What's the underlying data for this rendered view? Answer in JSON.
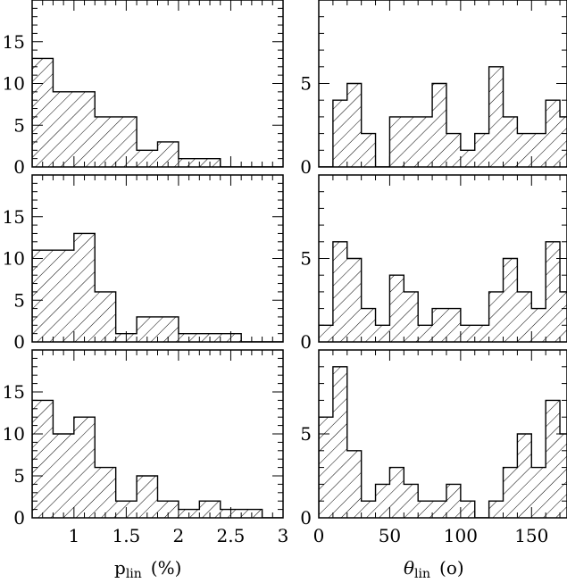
{
  "chart_data": [
    {
      "type": "bar",
      "panel": "row1-left",
      "hatched": true,
      "bin_edges": [
        0.6,
        0.8,
        1.0,
        1.2,
        1.4,
        1.6,
        1.8,
        2.0,
        2.2,
        2.4,
        2.6,
        2.8,
        3.0
      ],
      "values": [
        13,
        9,
        9,
        6,
        6,
        2,
        3,
        1,
        1,
        0,
        0,
        0
      ],
      "xlim": [
        0.6,
        3.0
      ],
      "ylim": [
        0,
        20
      ],
      "yticks": [
        0,
        5,
        10,
        15
      ]
    },
    {
      "type": "bar",
      "panel": "row1-right",
      "hatched": true,
      "bin_edges": [
        0,
        10,
        20,
        30,
        40,
        50,
        60,
        70,
        80,
        90,
        100,
        110,
        120,
        130,
        140,
        150,
        160,
        170,
        180
      ],
      "values": [
        0,
        4,
        5,
        2,
        0,
        3,
        3,
        3,
        5,
        2,
        1,
        2,
        6,
        3,
        2,
        2,
        4,
        3
      ],
      "xlim": [
        0,
        175
      ],
      "ylim": [
        0,
        10
      ],
      "yticks": [
        0,
        5
      ]
    },
    {
      "type": "bar",
      "panel": "row2-left",
      "hatched": true,
      "bin_edges": [
        0.6,
        0.8,
        1.0,
        1.2,
        1.4,
        1.6,
        1.8,
        2.0,
        2.2,
        2.4,
        2.6,
        2.8,
        3.0
      ],
      "values": [
        11,
        11,
        13,
        6,
        1,
        3,
        3,
        1,
        1,
        1,
        0,
        0
      ],
      "xlim": [
        0.6,
        3.0
      ],
      "ylim": [
        0,
        20
      ],
      "yticks": [
        0,
        5,
        10,
        15
      ]
    },
    {
      "type": "bar",
      "panel": "row2-right",
      "hatched": true,
      "bin_edges": [
        0,
        10,
        20,
        30,
        40,
        50,
        60,
        70,
        80,
        90,
        100,
        110,
        120,
        130,
        140,
        150,
        160,
        170,
        180
      ],
      "values": [
        1,
        6,
        5,
        2,
        1,
        4,
        3,
        1,
        2,
        2,
        1,
        1,
        3,
        5,
        3,
        2,
        6,
        3
      ],
      "xlim": [
        0,
        175
      ],
      "ylim": [
        0,
        10
      ],
      "yticks": [
        0,
        5
      ]
    },
    {
      "type": "bar",
      "panel": "row3-left",
      "hatched": true,
      "bin_edges": [
        0.6,
        0.8,
        1.0,
        1.2,
        1.4,
        1.6,
        1.8,
        2.0,
        2.2,
        2.4,
        2.6,
        2.8,
        3.0
      ],
      "values": [
        14,
        10,
        12,
        6,
        2,
        5,
        2,
        1,
        2,
        1,
        1,
        0
      ],
      "xlim": [
        0.6,
        3.0
      ],
      "ylim": [
        0,
        20
      ],
      "yticks": [
        0,
        5,
        10,
        15
      ],
      "xticks": [
        1,
        1.5,
        2,
        2.5,
        3
      ],
      "xtick_labels": [
        "1",
        "1.5",
        "2",
        "2.5",
        "3"
      ]
    },
    {
      "type": "bar",
      "panel": "row3-right",
      "hatched": true,
      "bin_edges": [
        0,
        10,
        20,
        30,
        40,
        50,
        60,
        70,
        80,
        90,
        100,
        110,
        120,
        130,
        140,
        150,
        160,
        170,
        180
      ],
      "values": [
        6,
        9,
        4,
        1,
        2,
        3,
        2,
        1,
        1,
        2,
        1,
        0,
        1,
        3,
        5,
        3,
        7,
        5
      ],
      "xlim": [
        0,
        175
      ],
      "ylim": [
        0,
        10
      ],
      "yticks": [
        0,
        5
      ],
      "xticks": [
        0,
        50,
        100,
        150
      ],
      "xtick_labels": [
        "0",
        "50",
        "100",
        "150"
      ]
    }
  ],
  "labels": {
    "left_main": "p",
    "left_sub": "lin",
    "left_unit": "(%)",
    "right_main": "θ",
    "right_sub": "lin",
    "right_unit": "(o)"
  }
}
